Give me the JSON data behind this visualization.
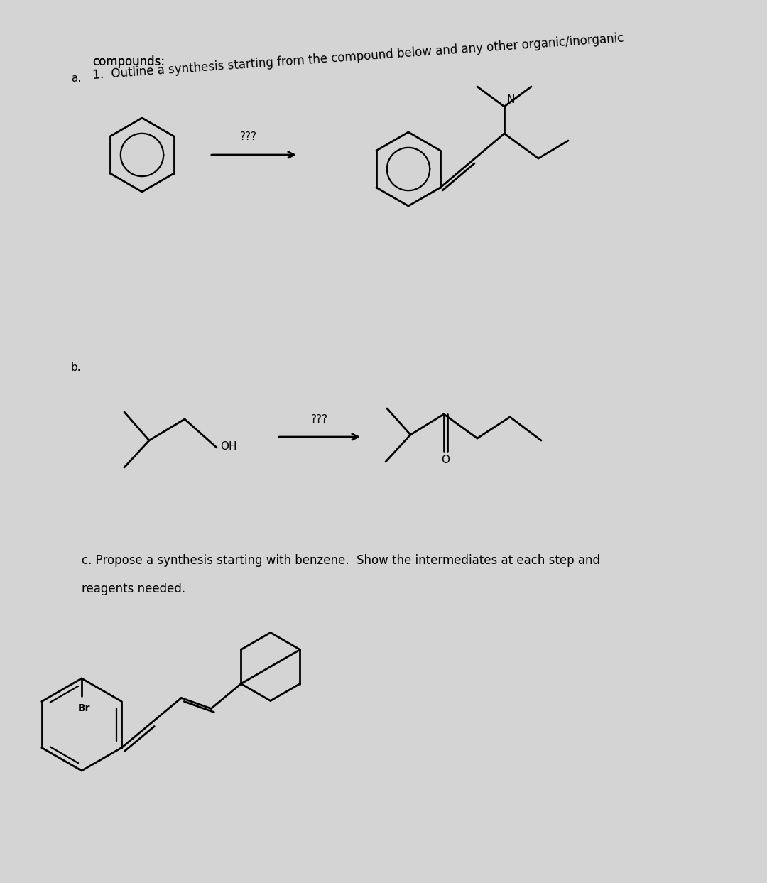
{
  "background_color": "#d4d4d4",
  "title_1_part1": "1.  Outline a synthesis starting from the compound below and any other organic/inorganic",
  "title_2": "compounds:",
  "label_a": "a.",
  "label_b": "b.",
  "label_c_line1": "c. Propose a synthesis starting with benzene.  Show the intermediates at each step and",
  "label_c_line2": "reagents needed.",
  "qqq": "???",
  "br_label": "Br",
  "n_label": "N",
  "oh_label": "OH",
  "o_label": "O"
}
